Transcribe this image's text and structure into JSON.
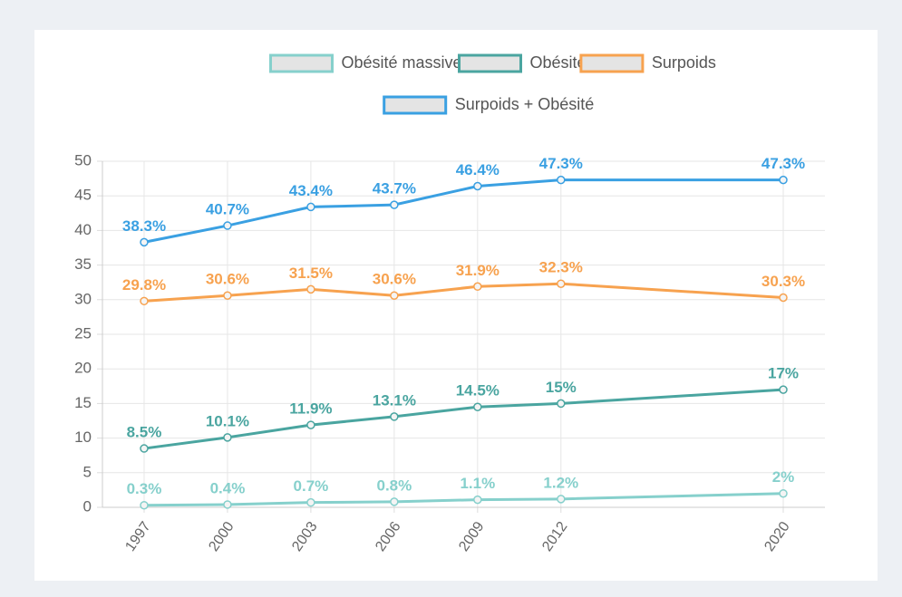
{
  "chart_data": {
    "type": "line",
    "x": [
      1997,
      2000,
      2003,
      2006,
      2009,
      2012,
      2020
    ],
    "xlim": [
      1995.5,
      2021.5
    ],
    "xticks": [
      1997,
      2000,
      2003,
      2006,
      2009,
      2012,
      2020
    ],
    "ylim": [
      0,
      50
    ],
    "yticks": [
      0,
      5,
      10,
      15,
      20,
      25,
      30,
      35,
      40,
      45,
      50
    ],
    "grid": true,
    "legend": "top",
    "series": [
      {
        "name": "Obésité massive",
        "color": "#86d0cc",
        "values": [
          0.3,
          0.4,
          0.7,
          0.8,
          1.1,
          1.2,
          2
        ],
        "value_labels": [
          "0.3%",
          "0.4%",
          "0.7%",
          "0.8%",
          "1.1%",
          "1.2%",
          "2%"
        ]
      },
      {
        "name": "Obésité",
        "color": "#4aa5a0",
        "values": [
          8.5,
          10.1,
          11.9,
          13.1,
          14.5,
          15,
          17
        ],
        "value_labels": [
          "8.5%",
          "10.1%",
          "11.9%",
          "13.1%",
          "14.5%",
          "15%",
          "17%"
        ]
      },
      {
        "name": "Surpoids",
        "color": "#f7a24f",
        "values": [
          29.8,
          30.6,
          31.5,
          30.6,
          31.9,
          32.3,
          30.3
        ],
        "value_labels": [
          "29.8%",
          "30.6%",
          "31.5%",
          "30.6%",
          "31.9%",
          "32.3%",
          "30.3%"
        ]
      },
      {
        "name": "Surpoids + Obésité",
        "color": "#3aa0e2",
        "values": [
          38.3,
          40.7,
          43.4,
          43.7,
          46.4,
          47.3,
          47.3
        ],
        "value_labels": [
          "38.3%",
          "40.7%",
          "43.4%",
          "43.7%",
          "46.4%",
          "47.3%",
          "47.3%"
        ]
      }
    ]
  }
}
